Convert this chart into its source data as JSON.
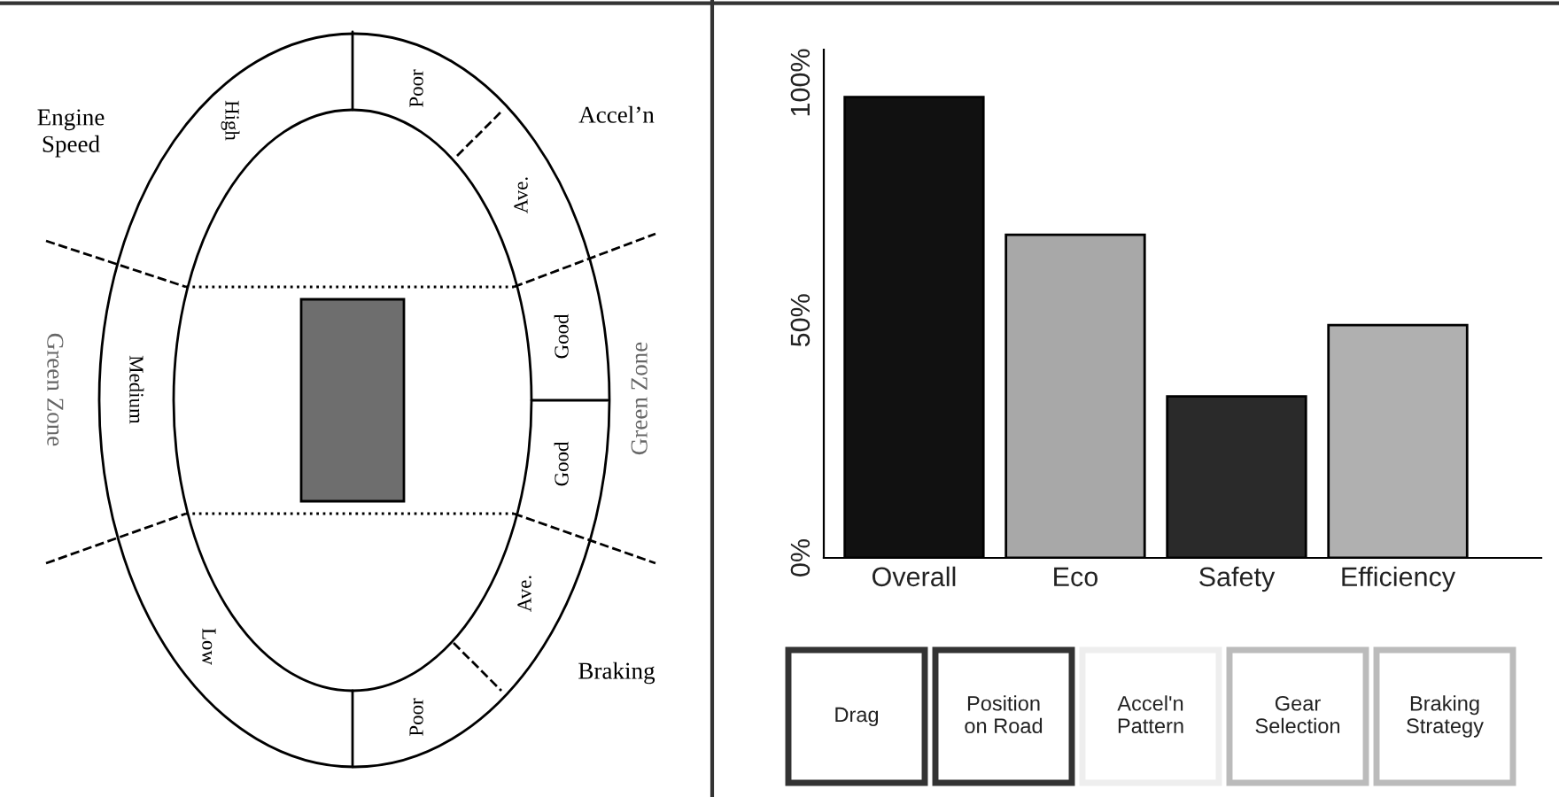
{
  "chart_data": [
    {
      "type": "other",
      "annotations": [
        "Engine\nSpeed",
        "Accel’n",
        "Braking",
        "Green Zone",
        "Green Zone",
        "High",
        "Poor",
        "Ave.",
        "Good",
        "Good",
        "Ave.",
        "Poor",
        "Low",
        "Medium"
      ]
    },
    {
      "type": "bar",
      "categories": [
        "Overall",
        "Eco",
        "Safety",
        "Efficiency"
      ],
      "values": [
        97,
        68,
        34,
        49
      ],
      "colors": [
        "#111111",
        "#a8a8a8",
        "#2a2a2a",
        "#b0b0b0"
      ],
      "ylim": [
        0,
        107
      ],
      "yticks": [
        {
          "value": 0,
          "label": "0%"
        },
        {
          "value": 50,
          "label": "50%"
        },
        {
          "value": 100,
          "label": "100%"
        }
      ],
      "grid": false,
      "annotations": [
        "Drag",
        "Position\non Road",
        "Accel'n\nPattern",
        "Gear\nSelection",
        "Braking\nStrategy"
      ]
    }
  ]
}
